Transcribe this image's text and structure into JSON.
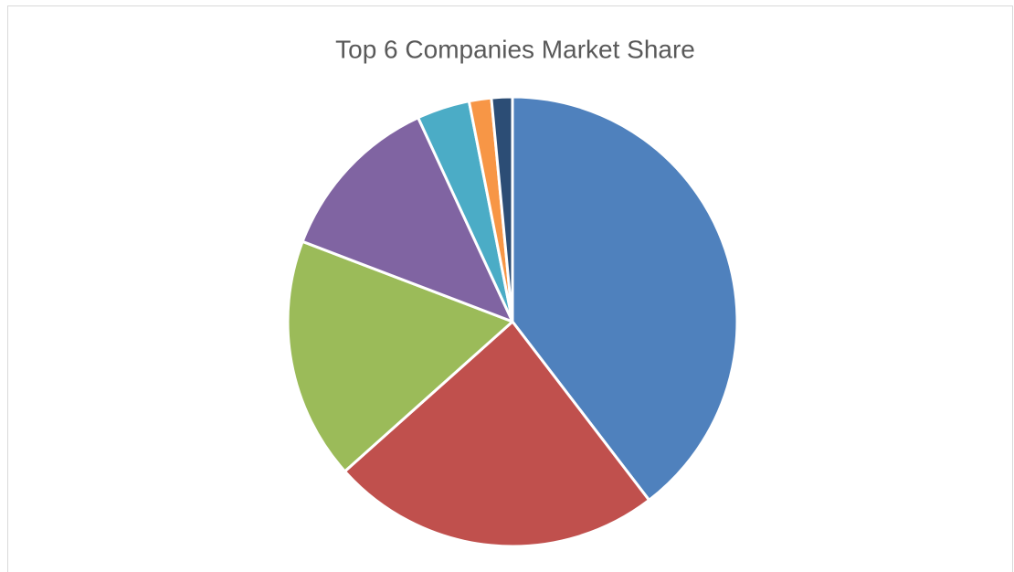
{
  "chart_data": {
    "type": "pie",
    "title": "Top 6 Companies Market Share",
    "values": [
      39.6,
      23.8,
      17.4,
      12.3,
      3.8,
      1.6,
      1.5
    ],
    "colors": [
      "#4f81bd",
      "#c0504d",
      "#9bbb59",
      "#8064a2",
      "#4bacc6",
      "#f79646",
      "#2c4d75"
    ]
  }
}
